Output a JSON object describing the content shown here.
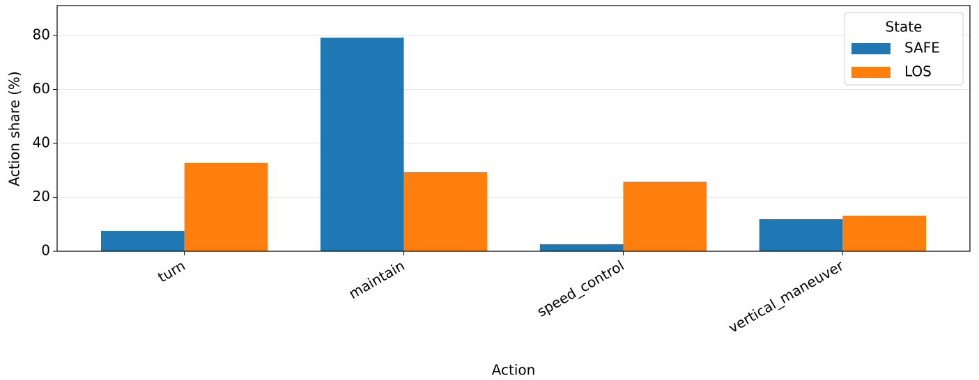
{
  "chart_data": {
    "type": "bar",
    "categories": [
      "turn",
      "maintain",
      "speed_control",
      "vertical_maneuver"
    ],
    "series": [
      {
        "name": "SAFE",
        "color": "#1f77b4",
        "values": [
          7.5,
          79.2,
          2.6,
          11.9
        ]
      },
      {
        "name": "LOS",
        "color": "#ff7f0e",
        "values": [
          32.8,
          29.4,
          25.8,
          13.2
        ]
      }
    ],
    "xlabel": "Action",
    "ylabel": "Action share (%)",
    "ylim": [
      0,
      91.1
    ],
    "yticks": [
      0,
      20,
      40,
      60,
      80
    ],
    "grid": true,
    "legend_title": "State",
    "legend": "upper right"
  }
}
